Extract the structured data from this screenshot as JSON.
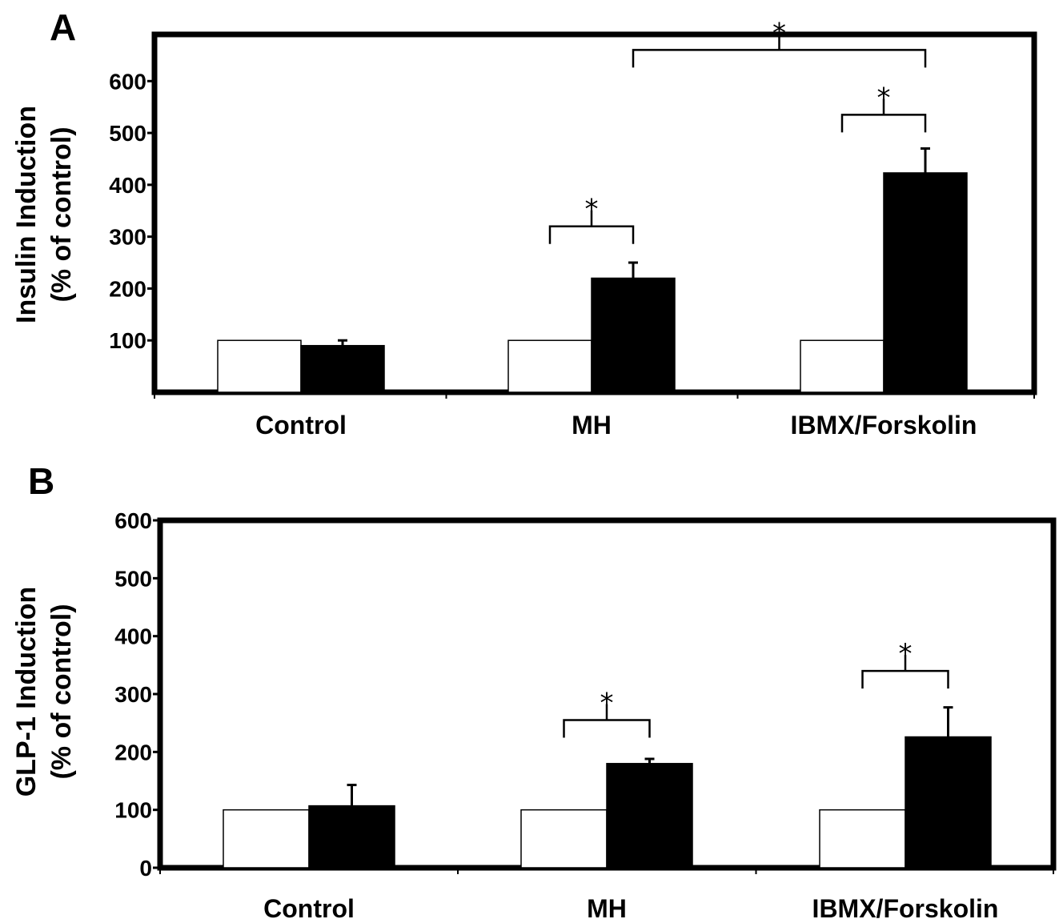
{
  "chart_data": [
    {
      "panel": "A",
      "type": "bar",
      "categories": [
        "Control",
        "MH",
        "IBMX/Forskolin"
      ],
      "series": [
        {
          "color": "#ffffff",
          "values": [
            100,
            100,
            100
          ]
        },
        {
          "color": "#000000",
          "values": [
            90,
            220,
            423
          ],
          "errors": [
            10,
            30,
            47
          ]
        }
      ],
      "ylabel_line1": "Insulin Induction",
      "ylabel_line2": "(% of control)",
      "yticks": [
        100,
        200,
        300,
        400,
        500,
        600
      ],
      "ylim": [
        0,
        690
      ],
      "significance": [
        {
          "from": [
            1,
            0
          ],
          "to": [
            1,
            1
          ],
          "y": 320,
          "label": "*"
        },
        {
          "from": [
            2,
            0
          ],
          "to": [
            2,
            1
          ],
          "y": 535,
          "label": "*"
        },
        {
          "from": [
            1,
            1
          ],
          "to": [
            2,
            1
          ],
          "y": 660,
          "label": "*"
        }
      ]
    },
    {
      "panel": "B",
      "type": "bar",
      "categories": [
        "Control",
        "MH",
        "IBMX/Forskolin"
      ],
      "series": [
        {
          "color": "#ffffff",
          "values": [
            100,
            100,
            100
          ]
        },
        {
          "color": "#000000",
          "values": [
            107,
            180,
            226
          ],
          "errors": [
            36,
            8,
            51
          ]
        }
      ],
      "ylabel_line1": "GLP-1 Induction",
      "ylabel_line2": "(% of control)",
      "yticks": [
        0,
        100,
        200,
        300,
        400,
        500,
        600
      ],
      "ylim": [
        0,
        600
      ],
      "significance": [
        {
          "from": [
            1,
            0
          ],
          "to": [
            1,
            1
          ],
          "y": 255,
          "label": "*"
        },
        {
          "from": [
            2,
            0
          ],
          "to": [
            2,
            1
          ],
          "y": 340,
          "label": "*"
        }
      ]
    }
  ]
}
